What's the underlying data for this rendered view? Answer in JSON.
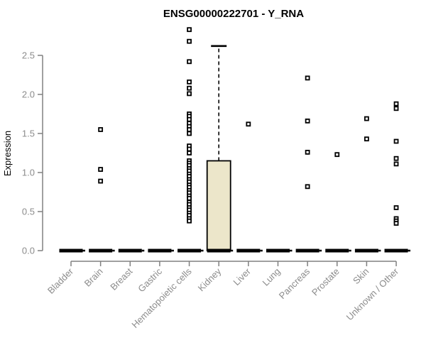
{
  "colors": {
    "background": "#ffffff",
    "title": "#000000",
    "axis": "#808080",
    "labels": "#8c8c8c",
    "box_fill": "#ece6ca",
    "box_stroke": "#000000",
    "median": "#000000",
    "whisker": "#000000",
    "outlier_stroke": "#000000",
    "outlier_fill": "#ffffff"
  },
  "chart_data": {
    "type": "boxplot",
    "title": "ENSG00000222701 - Y_RNA",
    "ylabel": "Expression",
    "xlabel": "",
    "ylim": [
      0,
      2.85
    ],
    "yticks": [
      0.0,
      0.5,
      1.0,
      1.5,
      2.0,
      2.5
    ],
    "grid": false,
    "legend": null,
    "categories": [
      "Bladder",
      "Brain",
      "Breast",
      "Gastric",
      "Hematopoietic cells",
      "Kidney",
      "Liver",
      "Lung",
      "Pancreas",
      "Prostate",
      "Skin",
      "Unknown / Other"
    ],
    "boxes": [
      {
        "category": "Bladder",
        "q1": 0,
        "median": 0,
        "q3": 0,
        "whisker_low": 0,
        "whisker_high": 0,
        "outliers": []
      },
      {
        "category": "Brain",
        "q1": 0,
        "median": 0,
        "q3": 0,
        "whisker_low": 0,
        "whisker_high": 0,
        "outliers": [
          1.55,
          1.04,
          0.89
        ]
      },
      {
        "category": "Breast",
        "q1": 0,
        "median": 0,
        "q3": 0,
        "whisker_low": 0,
        "whisker_high": 0,
        "outliers": []
      },
      {
        "category": "Gastric",
        "q1": 0,
        "median": 0,
        "q3": 0,
        "whisker_low": 0,
        "whisker_high": 0,
        "outliers": []
      },
      {
        "category": "Hematopoietic cells",
        "q1": 0,
        "median": 0,
        "q3": 0,
        "whisker_low": 0,
        "whisker_high": 0,
        "outliers": [
          2.83,
          2.68,
          2.42,
          2.16,
          2.08,
          2.01,
          1.75,
          1.72,
          1.68,
          1.63,
          1.59,
          1.55,
          1.5,
          1.34,
          1.3,
          1.25,
          1.15,
          1.12,
          1.09,
          1.05,
          1.02,
          0.98,
          0.95,
          0.91,
          0.88,
          0.84,
          0.81,
          0.77,
          0.74,
          0.7,
          0.67,
          0.62,
          0.59,
          0.55,
          0.52,
          0.48,
          0.45,
          0.41,
          0.38
        ]
      },
      {
        "category": "Kidney",
        "q1": 0,
        "median": 0,
        "q3": 1.15,
        "whisker_low": 0,
        "whisker_high": 2.62,
        "outliers": []
      },
      {
        "category": "Liver",
        "q1": 0,
        "median": 0,
        "q3": 0,
        "whisker_low": 0,
        "whisker_high": 0,
        "outliers": [
          1.62
        ]
      },
      {
        "category": "Lung",
        "q1": 0,
        "median": 0,
        "q3": 0,
        "whisker_low": 0,
        "whisker_high": 0,
        "outliers": []
      },
      {
        "category": "Pancreas",
        "q1": 0,
        "median": 0,
        "q3": 0,
        "whisker_low": 0,
        "whisker_high": 0,
        "outliers": [
          2.21,
          1.66,
          1.26,
          0.82
        ]
      },
      {
        "category": "Prostate",
        "q1": 0,
        "median": 0,
        "q3": 0,
        "whisker_low": 0,
        "whisker_high": 0,
        "outliers": [
          1.23
        ]
      },
      {
        "category": "Skin",
        "q1": 0,
        "median": 0,
        "q3": 0,
        "whisker_low": 0,
        "whisker_high": 0,
        "outliers": [
          1.69,
          1.43
        ]
      },
      {
        "category": "Unknown / Other",
        "q1": 0,
        "median": 0,
        "q3": 0,
        "whisker_low": 0,
        "whisker_high": 0,
        "outliers": [
          1.88,
          1.82,
          1.4,
          1.18,
          1.11,
          0.55,
          0.41,
          0.38,
          0.35
        ]
      }
    ]
  }
}
